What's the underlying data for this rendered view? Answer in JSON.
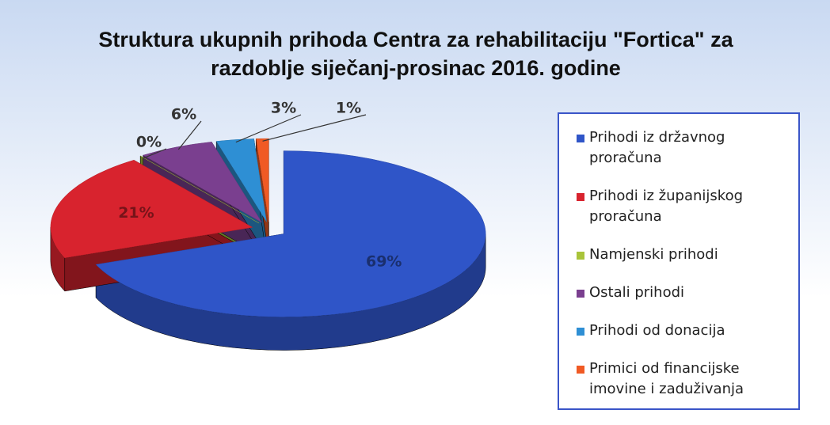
{
  "chart_data": {
    "type": "pie",
    "title": "Struktura ukupnih prihoda Centra za rehabilitaciju \"Fortica\" za razdoblje siječanj-prosinac 2016. godine",
    "categories": [
      "Prihodi iz državnog proračuna",
      "Prihodi iz županijskog proračuna",
      "Namjenski prihodi",
      "Ostali prihodi",
      "Prihodi od donacija",
      "Primici od financijske imovine i zaduživanja"
    ],
    "values": [
      69,
      21,
      0,
      6,
      3,
      1
    ],
    "value_labels": [
      "69%",
      "21%",
      "0%",
      "6%",
      "3%",
      "1%"
    ],
    "colors": [
      "#2f55c8",
      "#d8232e",
      "#a9c43a",
      "#7a3f8f",
      "#2e8fd4",
      "#f05a24"
    ],
    "legend": "right"
  }
}
